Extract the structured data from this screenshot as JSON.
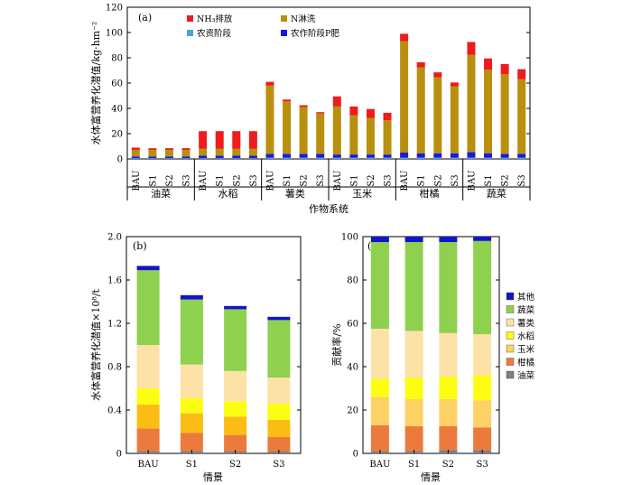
{
  "chart_data": [
    {
      "type": "bar",
      "panel_label": "(a)",
      "xlabel": "作物系统",
      "ylabel": "水体富营养化潜值/kg·hm⁻²",
      "ylim": [
        0,
        120
      ],
      "yticks": [
        0,
        20,
        40,
        60,
        80,
        100,
        120
      ],
      "groups": [
        "油菜",
        "水稻",
        "薯类",
        "玉米",
        "柑橘",
        "蔬菜"
      ],
      "scenarios": [
        "BAU",
        "S1",
        "S2",
        "S3"
      ],
      "legend": [
        "NH₃排放",
        "N淋洗",
        "农资阶段",
        "农作阶段P肥"
      ],
      "colors": {
        "nh3": "#ee1c1c",
        "leach": "#b8900e",
        "agri": "#4aa3df",
        "pfert": "#1a1adc"
      },
      "series": [
        {
          "name": "农资阶段",
          "values": [
            0.5,
            0.5,
            0.5,
            0.5,
            0.5,
            0.5,
            0.5,
            0.5,
            1,
            1,
            1,
            1,
            1,
            1,
            1,
            1,
            1,
            1,
            1,
            1,
            1,
            1,
            1,
            1
          ]
        },
        {
          "name": "农作阶段P肥",
          "values": [
            1.5,
            1.5,
            1.5,
            1.5,
            2,
            2,
            2,
            2,
            3,
            3,
            3,
            3,
            2.5,
            2.5,
            2.5,
            2.5,
            4,
            3.5,
            3.5,
            3.5,
            4.5,
            3.5,
            3,
            3
          ]
        },
        {
          "name": "N淋洗",
          "values": [
            5,
            5,
            5,
            5,
            5.5,
            5.5,
            5.5,
            5.5,
            54,
            41.5,
            37,
            32,
            38,
            31,
            29,
            27,
            88,
            68,
            60,
            53,
            77,
            66,
            63,
            59
          ]
        },
        {
          "name": "NH₃排放",
          "values": [
            2,
            1.5,
            1.5,
            1.5,
            14,
            14,
            14,
            14,
            3,
            1.5,
            1.5,
            1,
            8,
            7,
            7,
            6,
            6,
            4,
            4,
            3,
            10,
            9,
            8,
            8
          ]
        }
      ]
    },
    {
      "type": "bar",
      "panel_label": "(b)",
      "xlabel": "情景",
      "ylabel": "水体富营养化潜值×10⁸/t",
      "ylim": [
        0,
        2.0
      ],
      "yticks": [
        "0",
        "0.4",
        "0.8",
        "1.2",
        "1.6",
        "2.0"
      ],
      "categories": [
        "BAU",
        "S1",
        "S2",
        "S3"
      ],
      "series": [
        {
          "name": "油菜",
          "color": "#7f7f7f",
          "values": [
            0.02,
            0.02,
            0.02,
            0.02
          ]
        },
        {
          "name": "柑橘",
          "color": "#ec7a3c",
          "values": [
            0.21,
            0.17,
            0.15,
            0.13
          ]
        },
        {
          "name": "玉米",
          "color": "#fbbd13",
          "values": [
            0.22,
            0.18,
            0.17,
            0.16
          ]
        },
        {
          "name": "水稻",
          "color": "#fdfd12",
          "values": [
            0.15,
            0.14,
            0.14,
            0.15
          ]
        },
        {
          "name": "薯类",
          "color": "#fde2a8",
          "values": [
            0.4,
            0.31,
            0.28,
            0.24
          ]
        },
        {
          "name": "蔬菜",
          "color": "#8fd04f",
          "values": [
            0.69,
            0.6,
            0.57,
            0.53
          ]
        },
        {
          "name": "其他",
          "color": "#1414c8",
          "values": [
            0.04,
            0.04,
            0.03,
            0.03
          ]
        }
      ]
    },
    {
      "type": "bar",
      "panel_label": "(c)",
      "xlabel": "情景",
      "ylabel": "贡献率/%",
      "ylim": [
        0,
        100
      ],
      "yticks": [
        0,
        20,
        40,
        60,
        80,
        100
      ],
      "categories": [
        "BAU",
        "S1",
        "S2",
        "S3"
      ],
      "legend": [
        "其他",
        "蔬菜",
        "薯类",
        "水稻",
        "玉米",
        "柑橘",
        "油菜"
      ],
      "series": [
        {
          "name": "油菜",
          "color": "#7f7f7f",
          "values": [
            1,
            1,
            1.5,
            1.5
          ]
        },
        {
          "name": "柑橘",
          "color": "#ec7a3c",
          "values": [
            12,
            11.5,
            11,
            10.5
          ]
        },
        {
          "name": "玉米",
          "color": "#fdd166",
          "values": [
            13,
            12.5,
            12.5,
            12.5
          ]
        },
        {
          "name": "水稻",
          "color": "#fdfd12",
          "values": [
            8.5,
            10,
            10.5,
            11.5
          ]
        },
        {
          "name": "薯类",
          "color": "#fde2a8",
          "values": [
            23,
            21.5,
            20,
            19
          ]
        },
        {
          "name": "蔬菜",
          "color": "#8fd04f",
          "values": [
            40,
            41,
            42,
            43
          ]
        },
        {
          "name": "其他",
          "color": "#1414c8",
          "values": [
            2.5,
            2.5,
            2.5,
            2
          ]
        }
      ]
    }
  ]
}
